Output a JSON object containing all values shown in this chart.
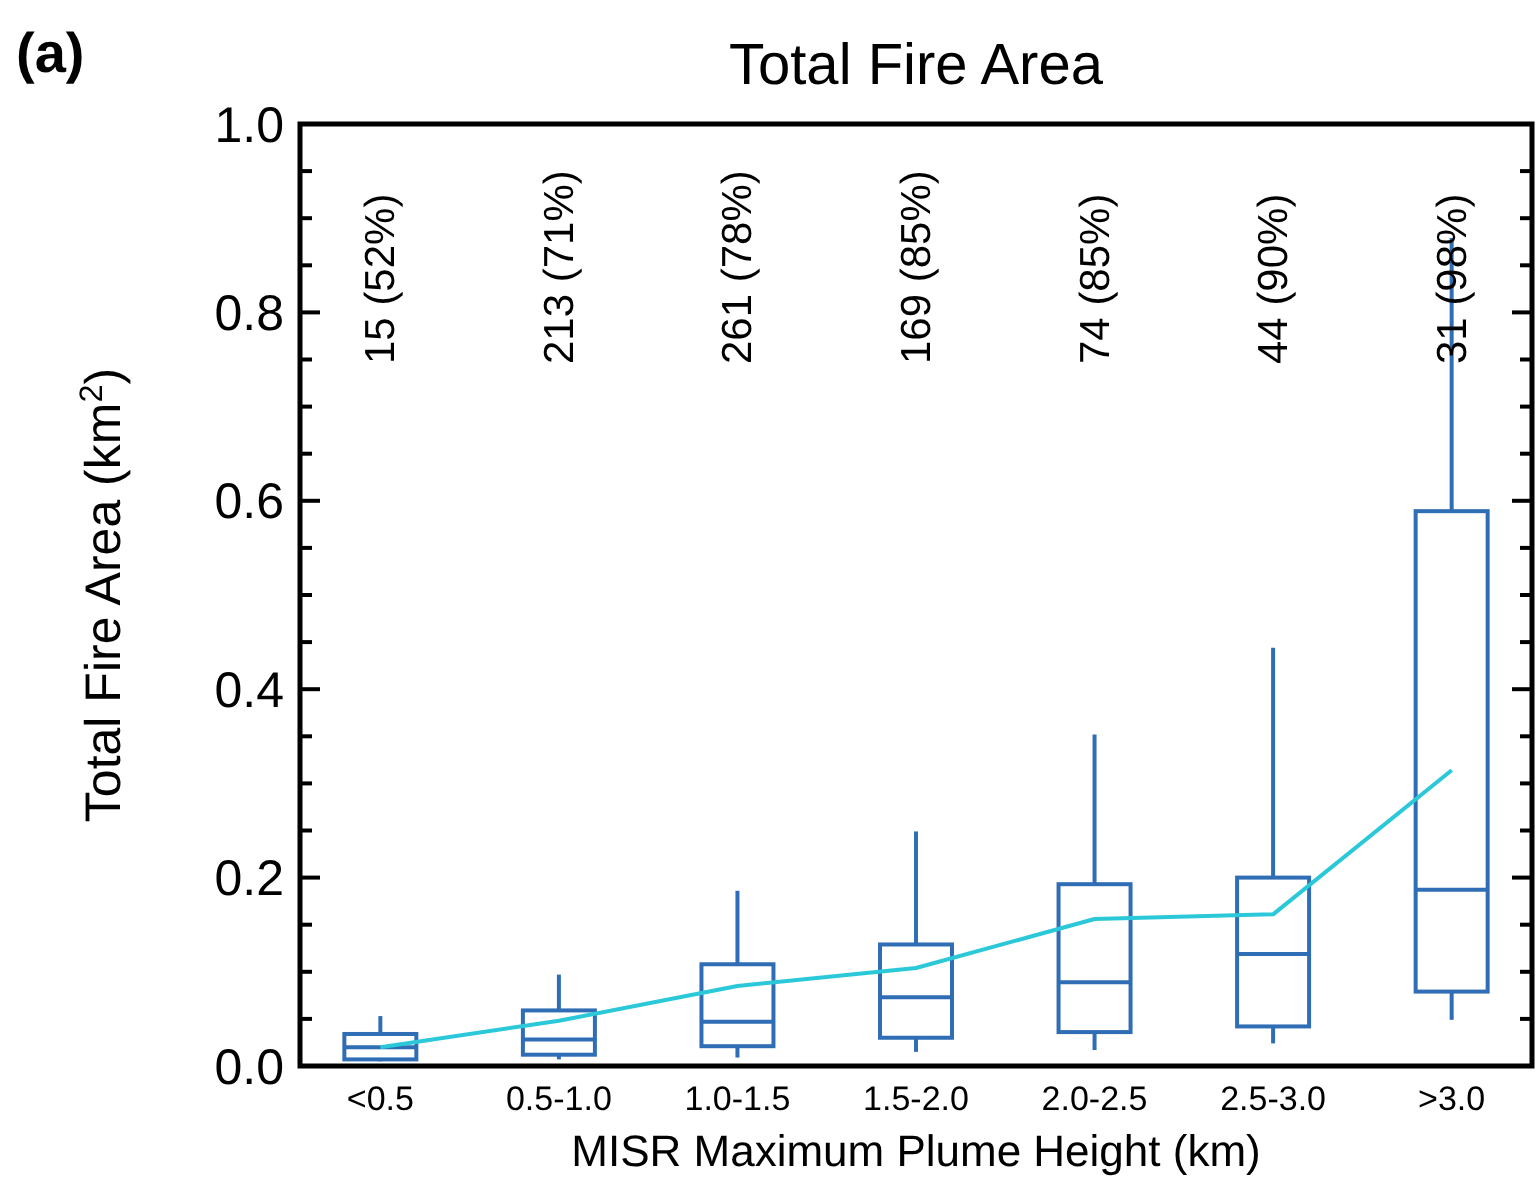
{
  "chart_data": {
    "type": "box",
    "title": "Total Fire Area",
    "xlabel": "MISR Maximum Plume Height (km)",
    "ylabel": "Total Fire Area (km$^{2}$)",
    "categories": [
      "<0.5",
      "0.5-1.0",
      "1.0-1.5",
      "1.5-2.0",
      "2.0-2.5",
      "2.5-3.0",
      ">3.0"
    ],
    "ylim": [
      0,
      1
    ],
    "yticks": [
      {
        "value": 0,
        "label": "0.0"
      },
      {
        "value": 0.05,
        "label": null
      },
      {
        "value": 0.1,
        "label": null
      },
      {
        "value": 0.15,
        "label": null
      },
      {
        "value": 0.2,
        "label": "0.2"
      },
      {
        "value": 0.25,
        "label": null
      },
      {
        "value": 0.3,
        "label": null
      },
      {
        "value": 0.35,
        "label": null
      },
      {
        "value": 0.4,
        "label": "0.4"
      },
      {
        "value": 0.45,
        "label": null
      },
      {
        "value": 0.5,
        "label": null
      },
      {
        "value": 0.55,
        "label": null
      },
      {
        "value": 0.6,
        "label": "0.6"
      },
      {
        "value": 0.65,
        "label": null
      },
      {
        "value": 0.7,
        "label": null
      },
      {
        "value": 0.75,
        "label": null
      },
      {
        "value": 0.8,
        "label": "0.8"
      },
      {
        "value": 0.85,
        "label": null
      },
      {
        "value": 0.9,
        "label": null
      },
      {
        "value": 0.95,
        "label": null
      },
      {
        "value": 1,
        "label": "1.0"
      }
    ],
    "series": [
      {
        "color": "#2f6db5",
        "boxes": [
          {
            "low": 0.005,
            "q1": 0.007,
            "median": 0.02,
            "q3": 0.034,
            "high": 0.053
          },
          {
            "low": 0.007,
            "q1": 0.012,
            "median": 0.028,
            "q3": 0.059,
            "high": 0.097
          },
          {
            "low": 0.009,
            "q1": 0.021,
            "median": 0.047,
            "q3": 0.108,
            "high": 0.186
          },
          {
            "low": 0.015,
            "q1": 0.03,
            "median": 0.073,
            "q3": 0.129,
            "high": 0.249
          },
          {
            "low": 0.017,
            "q1": 0.036,
            "median": 0.089,
            "q3": 0.193,
            "high": 0.352
          },
          {
            "low": 0.024,
            "q1": 0.042,
            "median": 0.119,
            "q3": 0.2,
            "high": 0.444
          },
          {
            "low": 0.049,
            "q1": 0.079,
            "median": 0.187,
            "q3": 0.589,
            "high": 0.879
          }
        ]
      },
      {
        "type": "line",
        "color": "#2ac8d8",
        "values": [
          0.02,
          0.048,
          0.085,
          0.104,
          0.156,
          0.161,
          0.314
        ]
      }
    ],
    "annotations": [
      "(a)",
      "15 (52%)",
      "213 (71%)",
      "261 (78%)",
      "169 (85%)",
      "74 (85%)",
      "44 (90%)",
      "31 (98%)"
    ],
    "grid": false
  }
}
